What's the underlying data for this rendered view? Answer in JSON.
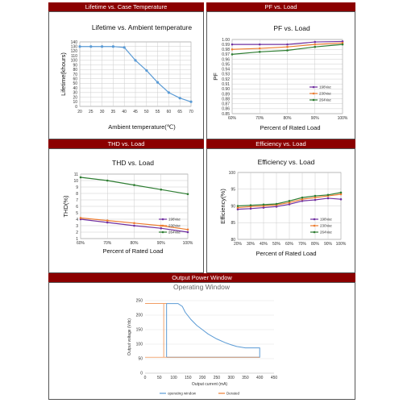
{
  "headers": {
    "lifetime": "Lifetime vs. Case Temperature",
    "pf": "PF vs. Load",
    "thd": "THD vs. Load",
    "eff": "Efficiency vs. Load",
    "window": "Output Power Window"
  },
  "chart_data": [
    {
      "id": "lifetime",
      "type": "line",
      "title": "Lifetime vs. Ambient temperature",
      "xlabel": "Ambient temperature(℃)",
      "ylabel": "Lifetime(khours)",
      "x": [
        20,
        25,
        30,
        35,
        40,
        45,
        50,
        55,
        60,
        65,
        70
      ],
      "xlim": [
        20,
        70
      ],
      "ylim": [
        0,
        140
      ],
      "yticks": [
        0,
        10,
        20,
        30,
        40,
        50,
        60,
        70,
        80,
        90,
        100,
        110,
        120,
        130,
        140
      ],
      "series": [
        {
          "color": "#5b9bd5",
          "values": [
            130,
            130,
            130,
            130,
            128,
            100,
            78,
            52,
            30,
            18,
            10
          ]
        }
      ],
      "grid": true
    },
    {
      "id": "pf",
      "type": "line",
      "title": "PF vs. Load",
      "xlabel": "Percent of Rated Load",
      "ylabel": "PF",
      "categories": [
        "60%",
        "70%",
        "80%",
        "90%",
        "100%"
      ],
      "ylim": [
        0.85,
        1
      ],
      "yticks": [
        0.85,
        0.86,
        0.87,
        0.88,
        0.89,
        0.9,
        0.91,
        0.92,
        0.93,
        0.94,
        0.95,
        0.96,
        0.97,
        0.98,
        0.99,
        1
      ],
      "ytick_decimals": 2,
      "series": [
        {
          "name": "198Vac",
          "color": "#7030a0",
          "values": [
            0.99,
            0.99,
            0.99,
            0.995,
            0.996
          ]
        },
        {
          "name": "230Vac",
          "color": "#ed7d31",
          "values": [
            0.98,
            0.982,
            0.985,
            0.99,
            0.993
          ]
        },
        {
          "name": "264Vac",
          "color": "#2e7d32",
          "values": [
            0.97,
            0.975,
            0.978,
            0.985,
            0.99
          ]
        }
      ],
      "legend": "bottom-right"
    },
    {
      "id": "thd",
      "type": "line",
      "title": "THD vs. Load",
      "xlabel": "Percent of Rated Load",
      "ylabel": "THD(%)",
      "categories": [
        "60%",
        "70%",
        "80%",
        "90%",
        "100%"
      ],
      "ylim": [
        1,
        11
      ],
      "yticks": [
        1,
        2,
        3,
        4,
        5,
        6,
        7,
        8,
        9,
        10,
        11
      ],
      "series": [
        {
          "name": "198Vac",
          "color": "#7030a0",
          "values": [
            4,
            3.5,
            3,
            2.6,
            2
          ]
        },
        {
          "name": "230Vac",
          "color": "#ed7d31",
          "values": [
            4.2,
            3.8,
            3.4,
            3,
            2.4
          ]
        },
        {
          "name": "264Vac",
          "color": "#2e7d32",
          "values": [
            10.5,
            10,
            9.3,
            8.6,
            7.9
          ]
        }
      ],
      "legend": "bottom-right"
    },
    {
      "id": "eff",
      "type": "line",
      "title": "Efficiency vs. Load",
      "xlabel": "Percent of Rated Load",
      "ylabel": "Efficiency(%)",
      "categories": [
        "20%",
        "30%",
        "40%",
        "50%",
        "60%",
        "70%",
        "80%",
        "90%",
        "100%"
      ],
      "ylim": [
        80,
        100
      ],
      "yticks": [
        80,
        85,
        90,
        95,
        100
      ],
      "series": [
        {
          "name": "198Vac",
          "color": "#7030a0",
          "values": [
            89,
            89.2,
            89.5,
            89.8,
            90.5,
            91.5,
            91.8,
            92.3,
            92
          ]
        },
        {
          "name": "230Vac",
          "color": "#ed7d31",
          "values": [
            89.5,
            89.8,
            90,
            90.3,
            91,
            92,
            92.5,
            93,
            93.5
          ]
        },
        {
          "name": "264Vac",
          "color": "#2e7d32",
          "values": [
            90,
            90.2,
            90.4,
            90.6,
            91.5,
            92.5,
            93,
            93.3,
            94
          ]
        }
      ],
      "legend": "right"
    },
    {
      "id": "window",
      "type": "area",
      "title": "Operating Window",
      "xlabel": "Output current (mA)",
      "ylabel": "Output voltage (Vdc)",
      "xlim": [
        0,
        450
      ],
      "ylim": [
        0,
        250
      ],
      "xticks": [
        0,
        50,
        100,
        150,
        200,
        250,
        300,
        350,
        400,
        450
      ],
      "yticks": [
        0,
        50,
        100,
        150,
        200,
        250
      ],
      "series": [
        {
          "name": "operating window",
          "color": "#5b9bd5",
          "x": [
            75,
            75,
            85,
            95,
            115,
            130,
            140,
            160,
            180,
            200,
            220,
            250,
            280,
            300,
            320,
            350,
            400,
            400,
            75
          ],
          "y": [
            55,
            240,
            240,
            240,
            240,
            230,
            210,
            185,
            165,
            150,
            135,
            118,
            105,
            98,
            92,
            87,
            87,
            55,
            55
          ]
        },
        {
          "name": "Derated",
          "color": "#ed7d31"
        }
      ],
      "legend": "bottom"
    }
  ]
}
